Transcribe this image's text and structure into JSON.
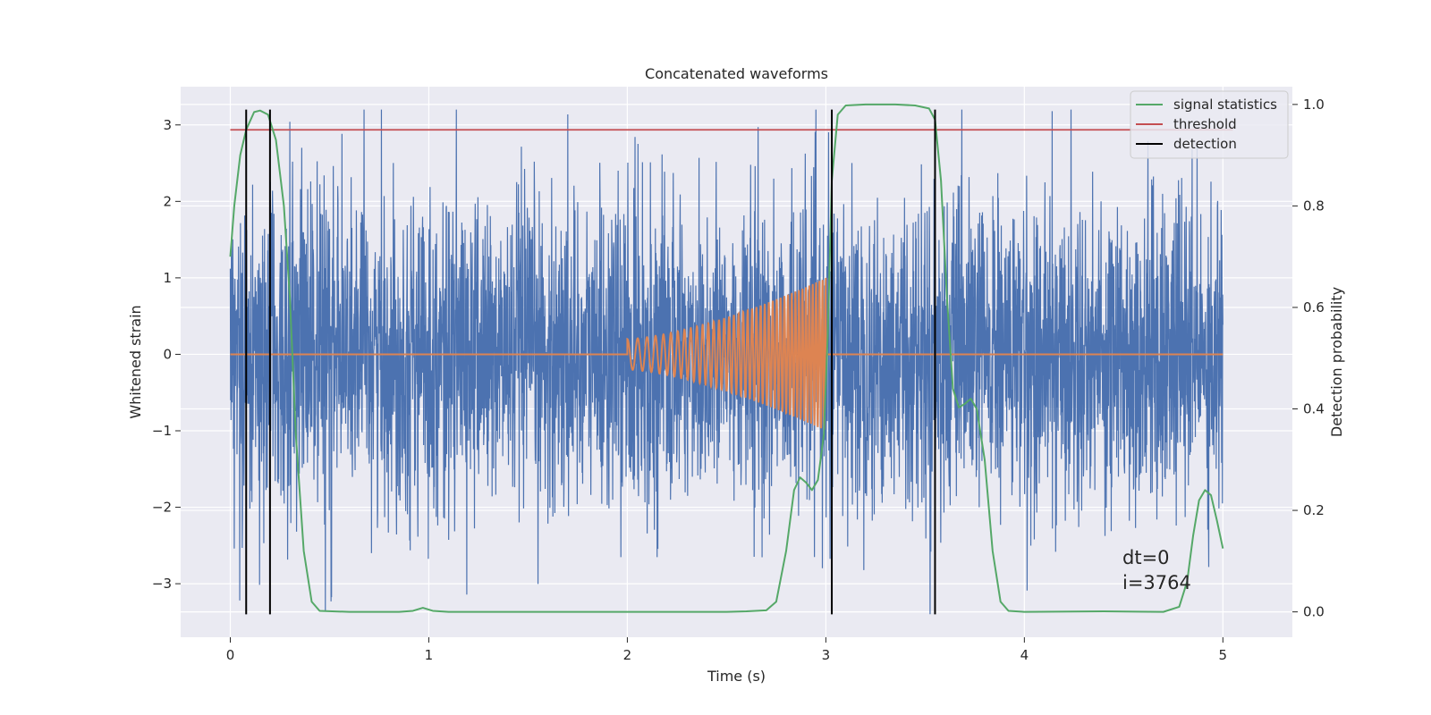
{
  "chart_data": {
    "type": "line",
    "title": "Concatenated waveforms",
    "xlabel": "Time (s)",
    "ylabel_left": "Whitened strain",
    "ylabel_right": "Detection probability",
    "xlim": [
      -0.25,
      5.35
    ],
    "ylim_left": [
      -3.7,
      3.5
    ],
    "ylim_right": [
      -0.05,
      1.035
    ],
    "x_ticks": [
      0,
      1,
      2,
      3,
      4,
      5
    ],
    "x_tick_labels": [
      "0",
      "1",
      "2",
      "3",
      "4",
      "5"
    ],
    "y_ticks_left": [
      -3,
      -2,
      -1,
      0,
      1,
      2,
      3
    ],
    "y_tick_labels_left": [
      "−3",
      "−2",
      "−1",
      "0",
      "1",
      "2",
      "3"
    ],
    "y_ticks_right": [
      0.0,
      0.2,
      0.4,
      0.6,
      0.8,
      1.0
    ],
    "y_tick_labels_right": [
      "0.0",
      "0.2",
      "0.4",
      "0.6",
      "0.8",
      "1.0"
    ],
    "grid": true,
    "legend_position": "top-right",
    "colors": {
      "background": "#eaeaf2",
      "grid": "#ffffff",
      "noise": "#4c72b0",
      "waveform": "#dd8452",
      "signal_statistics": "#55a868",
      "threshold": "#c44e52",
      "detection": "#000000"
    },
    "series": [
      {
        "name": "noise",
        "axis": "left",
        "description_x_range": [
          0,
          5
        ],
        "typical_amplitude": 1.0,
        "peak_max": 3.2,
        "peak_min": -3.4
      },
      {
        "name": "waveform",
        "axis": "left",
        "x_start": 2.0,
        "x_end": 3.0,
        "amplitude_start": 0.2,
        "amplitude_end": 1.0
      },
      {
        "name": "signal statistics",
        "axis": "right",
        "points": [
          [
            0.0,
            0.7
          ],
          [
            0.02,
            0.8
          ],
          [
            0.05,
            0.9
          ],
          [
            0.08,
            0.95
          ],
          [
            0.12,
            0.985
          ],
          [
            0.15,
            0.988
          ],
          [
            0.19,
            0.98
          ],
          [
            0.23,
            0.93
          ],
          [
            0.27,
            0.8
          ],
          [
            0.3,
            0.62
          ],
          [
            0.33,
            0.35
          ],
          [
            0.37,
            0.12
          ],
          [
            0.41,
            0.02
          ],
          [
            0.45,
            0.002
          ],
          [
            0.6,
            0.0
          ],
          [
            0.85,
            0.0
          ],
          [
            0.92,
            0.002
          ],
          [
            0.97,
            0.008
          ],
          [
            1.02,
            0.002
          ],
          [
            1.1,
            0.0
          ],
          [
            1.5,
            0.0
          ],
          [
            2.0,
            0.0
          ],
          [
            2.5,
            0.0
          ],
          [
            2.6,
            0.001
          ],
          [
            2.7,
            0.003
          ],
          [
            2.75,
            0.02
          ],
          [
            2.8,
            0.12
          ],
          [
            2.84,
            0.24
          ],
          [
            2.87,
            0.265
          ],
          [
            2.9,
            0.255
          ],
          [
            2.93,
            0.24
          ],
          [
            2.96,
            0.26
          ],
          [
            2.99,
            0.35
          ],
          [
            3.01,
            0.55
          ],
          [
            3.03,
            0.85
          ],
          [
            3.06,
            0.98
          ],
          [
            3.1,
            0.998
          ],
          [
            3.2,
            1.0
          ],
          [
            3.35,
            1.0
          ],
          [
            3.45,
            0.998
          ],
          [
            3.52,
            0.992
          ],
          [
            3.55,
            0.97
          ],
          [
            3.58,
            0.85
          ],
          [
            3.61,
            0.62
          ],
          [
            3.64,
            0.44
          ],
          [
            3.67,
            0.403
          ],
          [
            3.7,
            0.41
          ],
          [
            3.73,
            0.42
          ],
          [
            3.76,
            0.4
          ],
          [
            3.8,
            0.3
          ],
          [
            3.84,
            0.12
          ],
          [
            3.88,
            0.02
          ],
          [
            3.92,
            0.002
          ],
          [
            4.0,
            0.0
          ],
          [
            4.4,
            0.001
          ],
          [
            4.7,
            0.0
          ],
          [
            4.78,
            0.01
          ],
          [
            4.82,
            0.06
          ],
          [
            4.85,
            0.15
          ],
          [
            4.88,
            0.22
          ],
          [
            4.91,
            0.24
          ],
          [
            4.94,
            0.23
          ],
          [
            4.97,
            0.18
          ],
          [
            5.0,
            0.125
          ]
        ]
      },
      {
        "name": "threshold",
        "axis": "right",
        "x_range": [
          0,
          5.05
        ],
        "value": 0.95
      },
      {
        "name": "detection",
        "axis": "left",
        "x_values": [
          0.08,
          0.2,
          3.03,
          3.55
        ],
        "y_range": [
          -3.4,
          3.2
        ]
      }
    ],
    "legend": [
      "signal statistics",
      "threshold",
      "detection"
    ],
    "annotations": [
      "dt=0",
      "i=3764"
    ]
  }
}
